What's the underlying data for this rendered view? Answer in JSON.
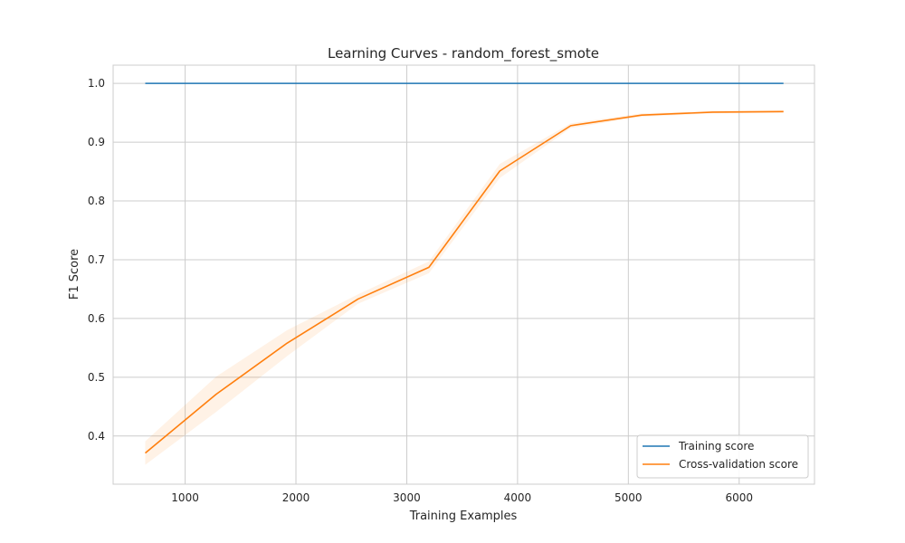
{
  "chart_data": {
    "type": "line",
    "title": "Learning Curves - random_forest_smote",
    "xlabel": "Training Examples",
    "ylabel": "F1 Score",
    "xlim": [
      350,
      6680
    ],
    "ylim": [
      0.318,
      1.031
    ],
    "xticks": [
      1000,
      2000,
      3000,
      4000,
      5000,
      6000
    ],
    "yticks": [
      0.4,
      0.5,
      0.6,
      0.7,
      0.8,
      0.9,
      1.0
    ],
    "ytick_labels": [
      "0.4",
      "0.5",
      "0.6",
      "0.7",
      "0.8",
      "0.9",
      "1.0"
    ],
    "grid": true,
    "legend_position": "bottom-right",
    "x": [
      640,
      1280,
      1920,
      2560,
      3200,
      3840,
      4480,
      5120,
      5760,
      6400
    ],
    "series": [
      {
        "name": "Training score",
        "color": "#1f77b4",
        "values": [
          1.0,
          1.0,
          1.0,
          1.0,
          1.0,
          1.0,
          1.0,
          1.0,
          1.0,
          1.0
        ],
        "band": [
          0,
          0,
          0,
          0,
          0,
          0,
          0,
          0,
          0,
          0
        ]
      },
      {
        "name": "Cross-validation score",
        "color": "#ff7f0e",
        "values": [
          0.371,
          0.471,
          0.558,
          0.633,
          0.687,
          0.851,
          0.928,
          0.946,
          0.951,
          0.952
        ],
        "band": [
          0.02,
          0.03,
          0.022,
          0.008,
          0.01,
          0.012,
          0.004,
          0.003,
          0.002,
          0.002
        ]
      }
    ]
  }
}
